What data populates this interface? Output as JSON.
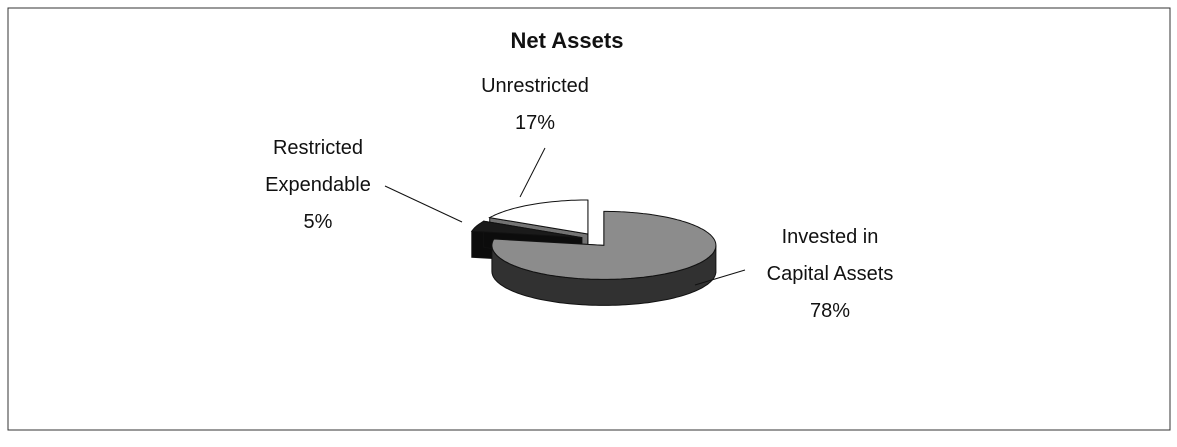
{
  "chart_data": {
    "type": "pie3d",
    "title": "Net Assets",
    "categories": [
      "Invested in Capital Assets",
      "Restricted Expendable",
      "Unrestricted"
    ],
    "values": [
      78,
      5,
      17
    ],
    "value_labels": [
      "78%",
      "5%",
      "17%"
    ],
    "colors": [
      "#8c8c8c",
      "#1a1a1a",
      "#ffffff"
    ]
  }
}
